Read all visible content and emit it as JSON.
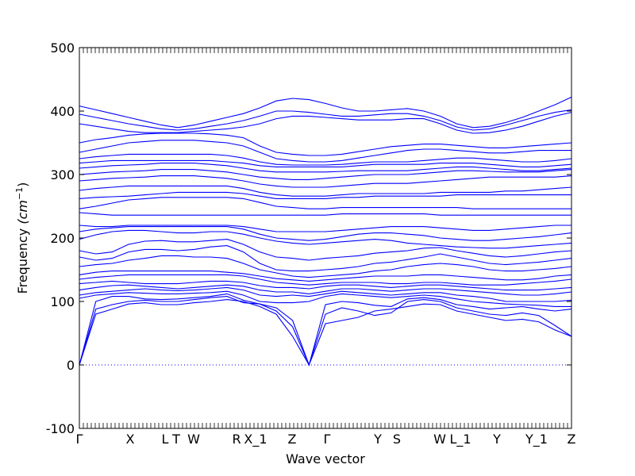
{
  "chart_data": {
    "type": "line",
    "xlabel": "Wave vector",
    "ylabel": "Frequency",
    "ylabel_unit": "(cm",
    "ylabel_unit_sup": "−1",
    "ylabel_unit_close": ")",
    "ylim": [
      -100,
      500
    ],
    "yticks": [
      -100,
      0,
      100,
      200,
      300,
      400,
      500
    ],
    "xlim": [
      0,
      31
    ],
    "high_symmetry_points": [
      {
        "label": "Γ",
        "x": 0
      },
      {
        "label": "X",
        "x": 3.2
      },
      {
        "label": "L",
        "x": 5.4
      },
      {
        "label": "T",
        "x": 6.1
      },
      {
        "label": "W",
        "x": 7.2
      },
      {
        "label": "R",
        "x": 9.9
      },
      {
        "label": "X_1",
        "x": 11.1
      },
      {
        "label": "Z",
        "x": 13.4
      },
      {
        "label": "Γ",
        "x": 15.6
      },
      {
        "label": "Y",
        "x": 18.8
      },
      {
        "label": "S",
        "x": 20.0
      },
      {
        "label": "W",
        "x": 22.7
      },
      {
        "label": "L_1",
        "x": 24.0
      },
      {
        "label": "Y",
        "x": 26.3
      },
      {
        "label": "Y_1",
        "x": 28.8
      },
      {
        "label": "Z",
        "x": 31.0
      }
    ],
    "zero_line": true,
    "line_color": "#0000ff",
    "zero_line_color": "#0000ff",
    "series": [
      {
        "values": [
          0,
          80,
          88,
          96,
          98,
          95,
          95,
          98,
          100,
          103,
          100,
          92,
          80,
          45,
          0,
          65,
          70,
          75,
          85,
          88,
          92,
          96,
          95,
          85,
          80,
          75,
          70,
          72,
          68,
          55,
          45
        ]
      },
      {
        "values": [
          0,
          88,
          95,
          100,
          102,
          100,
          100,
          103,
          106,
          108,
          98,
          96,
          85,
          60,
          0,
          80,
          90,
          85,
          78,
          82,
          100,
          103,
          100,
          90,
          85,
          80,
          78,
          82,
          78,
          62,
          45
        ]
      },
      {
        "values": [
          0,
          100,
          108,
          108,
          104,
          103,
          104,
          106,
          108,
          112,
          102,
          96,
          90,
          70,
          0,
          95,
          100,
          98,
          94,
          92,
          104,
          106,
          103,
          95,
          92,
          88,
          90,
          92,
          88,
          85,
          88
        ]
      },
      {
        "values": [
          105,
          110,
          112,
          114,
          113,
          112,
          112,
          113,
          114,
          116,
          110,
          100,
          98,
          98,
          100,
          108,
          112,
          110,
          108,
          106,
          108,
          110,
          108,
          104,
          100,
          98,
          96,
          95,
          94,
          92,
          92
        ]
      },
      {
        "values": [
          110,
          114,
          116,
          118,
          120,
          118,
          117,
          118,
          120,
          122,
          118,
          110,
          108,
          110,
          108,
          112,
          116,
          114,
          112,
          110,
          112,
          114,
          114,
          110,
          108,
          105,
          100,
          100,
          100,
          100,
          102
        ]
      },
      {
        "values": [
          118,
          122,
          125,
          126,
          124,
          122,
          120,
          122,
          124,
          126,
          124,
          118,
          115,
          115,
          112,
          116,
          120,
          120,
          118,
          116,
          118,
          120,
          120,
          118,
          116,
          114,
          112,
          110,
          110,
          112,
          115
        ]
      },
      {
        "values": [
          128,
          130,
          132,
          130,
          128,
          128,
          128,
          130,
          132,
          132,
          130,
          125,
          122,
          122,
          120,
          124,
          126,
          126,
          124,
          122,
          124,
          126,
          126,
          124,
          122,
          120,
          118,
          118,
          118,
          120,
          122
        ]
      },
      {
        "values": [
          135,
          138,
          140,
          142,
          142,
          142,
          142,
          142,
          142,
          142,
          140,
          135,
          130,
          128,
          126,
          128,
          130,
          130,
          130,
          128,
          128,
          130,
          130,
          128,
          126,
          126,
          126,
          128,
          130,
          132,
          135
        ]
      },
      {
        "values": [
          142,
          146,
          148,
          148,
          148,
          148,
          148,
          148,
          148,
          146,
          144,
          140,
          136,
          134,
          132,
          134,
          136,
          138,
          140,
          140,
          140,
          142,
          142,
          140,
          138,
          136,
          134,
          134,
          136,
          140,
          142
        ]
      },
      {
        "values": [
          155,
          158,
          160,
          165,
          168,
          172,
          172,
          170,
          170,
          168,
          160,
          150,
          145,
          140,
          138,
          140,
          142,
          144,
          148,
          150,
          155,
          158,
          160,
          158,
          155,
          150,
          148,
          148,
          150,
          152,
          155
        ]
      },
      {
        "values": [
          170,
          165,
          168,
          178,
          182,
          182,
          180,
          182,
          186,
          188,
          178,
          160,
          150,
          148,
          148,
          150,
          152,
          155,
          160,
          162,
          166,
          170,
          175,
          170,
          165,
          160,
          158,
          160,
          162,
          165,
          168
        ]
      },
      {
        "values": [
          180,
          175,
          178,
          190,
          195,
          196,
          194,
          194,
          196,
          198,
          190,
          178,
          170,
          168,
          165,
          168,
          170,
          172,
          176,
          178,
          180,
          184,
          185,
          180,
          176,
          172,
          170,
          172,
          175,
          178,
          180
        ]
      },
      {
        "values": [
          198,
          205,
          210,
          212,
          212,
          210,
          208,
          208,
          210,
          210,
          206,
          200,
          195,
          192,
          190,
          192,
          194,
          196,
          198,
          196,
          192,
          190,
          188,
          186,
          185,
          184,
          184,
          186,
          188,
          190,
          192
        ]
      },
      {
        "values": [
          210,
          214,
          216,
          218,
          218,
          218,
          218,
          218,
          218,
          218,
          214,
          206,
          200,
          198,
          196,
          198,
          202,
          206,
          208,
          208,
          206,
          204,
          200,
          198,
          196,
          196,
          198,
          200,
          202,
          205,
          208
        ]
      },
      {
        "values": [
          220,
          218,
          218,
          220,
          220,
          220,
          220,
          220,
          220,
          220,
          218,
          214,
          210,
          210,
          210,
          210,
          212,
          214,
          216,
          218,
          218,
          218,
          216,
          214,
          212,
          212,
          214,
          216,
          218,
          220,
          220
        ]
      },
      {
        "values": [
          240,
          238,
          236,
          236,
          236,
          236,
          236,
          236,
          236,
          236,
          236,
          236,
          236,
          236,
          236,
          236,
          238,
          238,
          238,
          238,
          238,
          238,
          236,
          236,
          236,
          236,
          236,
          236,
          236,
          236,
          236
        ]
      },
      {
        "values": [
          246,
          250,
          255,
          260,
          262,
          264,
          264,
          264,
          264,
          264,
          262,
          256,
          250,
          248,
          246,
          246,
          248,
          248,
          248,
          248,
          248,
          248,
          248,
          248,
          246,
          246,
          246,
          246,
          246,
          246,
          246
        ]
      },
      {
        "values": [
          262,
          264,
          265,
          266,
          268,
          270,
          272,
          272,
          272,
          272,
          270,
          266,
          262,
          262,
          262,
          262,
          264,
          264,
          266,
          266,
          266,
          266,
          266,
          268,
          268,
          268,
          268,
          268,
          268,
          268,
          268
        ]
      },
      {
        "values": [
          275,
          278,
          280,
          282,
          282,
          282,
          282,
          282,
          282,
          282,
          278,
          272,
          268,
          266,
          266,
          266,
          268,
          270,
          270,
          270,
          270,
          270,
          272,
          272,
          272,
          272,
          274,
          274,
          276,
          278,
          280
        ]
      },
      {
        "values": [
          290,
          292,
          294,
          295,
          296,
          298,
          298,
          298,
          296,
          294,
          290,
          285,
          282,
          280,
          280,
          280,
          282,
          284,
          286,
          286,
          286,
          288,
          290,
          292,
          294,
          296,
          296,
          296,
          296,
          296,
          298
        ]
      },
      {
        "values": [
          300,
          302,
          304,
          305,
          306,
          308,
          308,
          308,
          306,
          304,
          300,
          296,
          294,
          292,
          292,
          294,
          296,
          298,
          300,
          300,
          300,
          302,
          304,
          306,
          306,
          305,
          304,
          304,
          304,
          306,
          308
        ]
      },
      {
        "values": [
          310,
          312,
          314,
          315,
          316,
          318,
          318,
          318,
          316,
          314,
          310,
          306,
          304,
          304,
          304,
          304,
          305,
          306,
          306,
          306,
          306,
          308,
          310,
          312,
          312,
          310,
          308,
          306,
          306,
          308,
          310
        ]
      },
      {
        "values": [
          318,
          320,
          322,
          322,
          322,
          322,
          322,
          322,
          322,
          320,
          318,
          314,
          312,
          312,
          312,
          312,
          312,
          314,
          316,
          316,
          316,
          316,
          318,
          318,
          318,
          316,
          314,
          312,
          312,
          314,
          316
        ]
      },
      {
        "values": [
          325,
          328,
          330,
          332,
          332,
          332,
          332,
          332,
          332,
          330,
          326,
          320,
          316,
          315,
          315,
          315,
          316,
          318,
          320,
          320,
          320,
          322,
          324,
          326,
          326,
          324,
          322,
          320,
          320,
          322,
          325
        ]
      },
      {
        "values": [
          335,
          340,
          345,
          350,
          352,
          354,
          354,
          354,
          352,
          350,
          345,
          335,
          325,
          322,
          320,
          320,
          322,
          326,
          330,
          334,
          338,
          340,
          340,
          338,
          336,
          334,
          334,
          336,
          338,
          338,
          338
        ]
      },
      {
        "values": [
          350,
          355,
          358,
          362,
          364,
          365,
          365,
          365,
          364,
          362,
          358,
          345,
          335,
          332,
          330,
          330,
          332,
          336,
          340,
          344,
          346,
          348,
          348,
          346,
          344,
          342,
          342,
          344,
          346,
          348,
          350
        ]
      },
      {
        "values": [
          380,
          376,
          372,
          368,
          366,
          366,
          366,
          368,
          370,
          372,
          375,
          380,
          388,
          392,
          392,
          390,
          388,
          386,
          386,
          386,
          388,
          388,
          380,
          370,
          365,
          366,
          370,
          376,
          384,
          392,
          398
        ]
      },
      {
        "values": [
          395,
          390,
          385,
          380,
          376,
          372,
          370,
          372,
          376,
          380,
          385,
          392,
          400,
          400,
          398,
          395,
          392,
          392,
          394,
          396,
          396,
          392,
          385,
          375,
          370,
          372,
          378,
          385,
          392,
          398,
          402
        ]
      },
      {
        "values": [
          408,
          402,
          396,
          390,
          384,
          378,
          374,
          378,
          384,
          390,
          396,
          405,
          416,
          420,
          418,
          412,
          405,
          400,
          400,
          402,
          404,
          400,
          392,
          380,
          374,
          376,
          382,
          390,
          400,
          410,
          422
        ]
      }
    ]
  }
}
